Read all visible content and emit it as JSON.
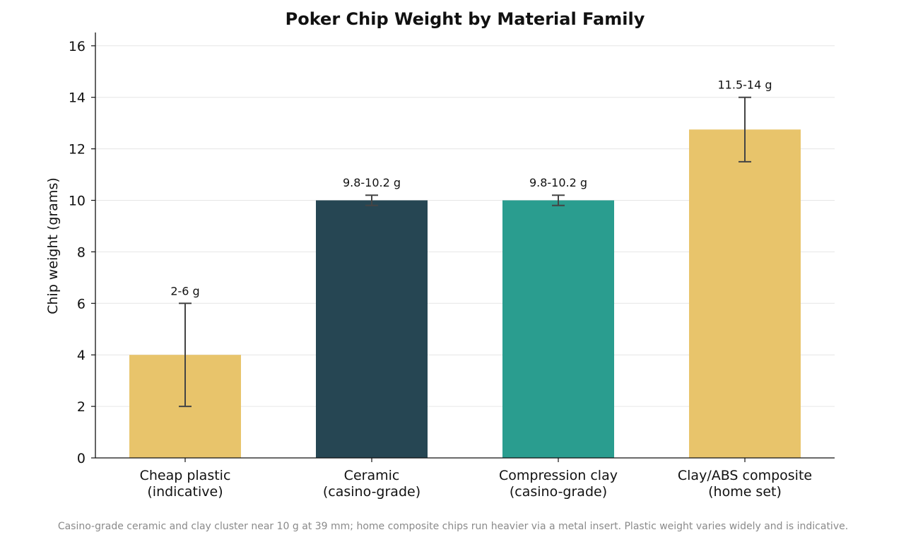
{
  "chart_data": {
    "type": "bar",
    "title": "Poker Chip Weight by Material Family",
    "xlabel": "",
    "ylabel": "Chip weight (grams)",
    "ylim": [
      0,
      16.5
    ],
    "yticks": [
      0,
      2,
      4,
      6,
      8,
      10,
      12,
      14,
      16
    ],
    "grid": "horizontal",
    "categories": [
      [
        "Cheap plastic",
        "(indicative)"
      ],
      [
        "Ceramic",
        "(casino-grade)"
      ],
      [
        "Compression clay",
        "(casino-grade)"
      ],
      [
        "Clay/ABS composite",
        "(home set)"
      ]
    ],
    "values": [
      4,
      10,
      10,
      12.75
    ],
    "error_low": [
      2,
      9.8,
      9.8,
      11.5
    ],
    "error_high": [
      6,
      10.2,
      10.2,
      14
    ],
    "data_labels": [
      "2-6 g",
      "9.8-10.2 g",
      "9.8-10.2 g",
      "11.5-14 g"
    ],
    "colors": [
      "#e8c46b",
      "#264653",
      "#2a9d8f",
      "#e8c46b"
    ],
    "footnote": "Casino-grade ceramic and clay cluster near 10 g at 39 mm; home composite chips run heavier via a metal insert. Plastic weight varies widely and is indicative."
  }
}
